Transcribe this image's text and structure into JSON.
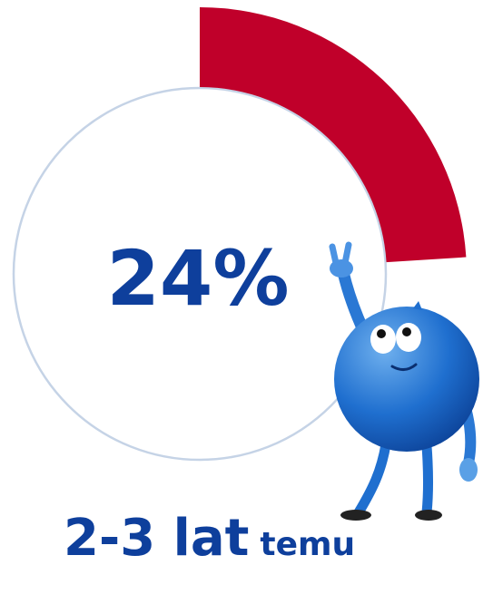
{
  "chart_data": {
    "type": "pie",
    "values": [
      24
    ],
    "value_labels": [
      "24%"
    ],
    "color": "#c0002a",
    "caption": "2-3 lat",
    "caption_suffix": "temu"
  }
}
